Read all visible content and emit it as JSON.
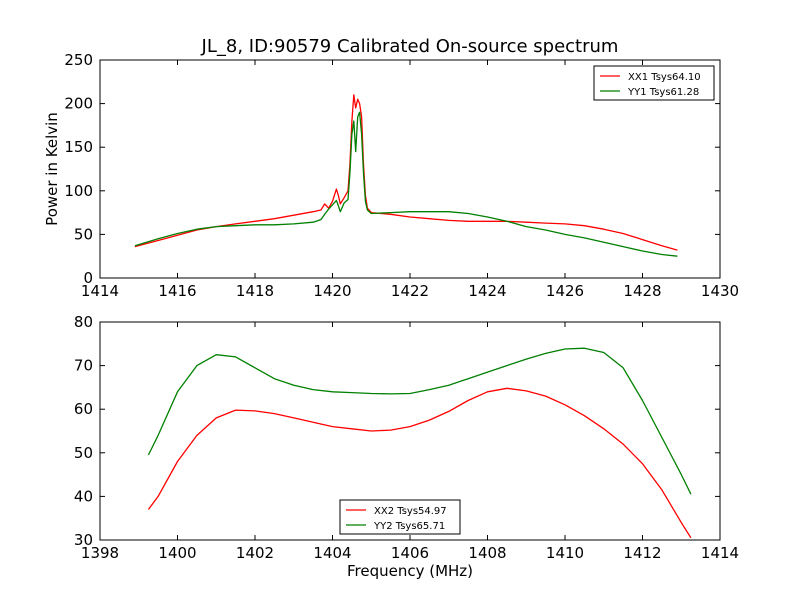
{
  "chart_data": {
    "title": "JL_8, ID:90579 Calibrated On-source spectrum",
    "xlabel": "Frequency (MHz)",
    "charts": [
      {
        "type": "line",
        "ylabel": "Power in Kelvin",
        "xlim": [
          1414,
          1430
        ],
        "ylim": [
          0,
          250
        ],
        "x_ticks": [
          1414,
          1416,
          1418,
          1420,
          1422,
          1424,
          1426,
          1428,
          1430
        ],
        "y_ticks": [
          0,
          50,
          100,
          150,
          200,
          250
        ],
        "legend_position": "top-right",
        "series": [
          {
            "name": "XX1 Tsys64.10",
            "color": "#ff0000",
            "points": [
              [
                1414.9,
                36
              ],
              [
                1415.5,
                43
              ],
              [
                1416.0,
                49
              ],
              [
                1416.5,
                55
              ],
              [
                1417.0,
                59
              ],
              [
                1417.5,
                62
              ],
              [
                1418.0,
                65
              ],
              [
                1418.5,
                68
              ],
              [
                1419.0,
                72
              ],
              [
                1419.5,
                76
              ],
              [
                1419.7,
                78
              ],
              [
                1419.8,
                85
              ],
              [
                1419.9,
                80
              ],
              [
                1420.0,
                88
              ],
              [
                1420.1,
                102
              ],
              [
                1420.15,
                95
              ],
              [
                1420.2,
                85
              ],
              [
                1420.3,
                92
              ],
              [
                1420.4,
                100
              ],
              [
                1420.45,
                130
              ],
              [
                1420.5,
                180
              ],
              [
                1420.55,
                210
              ],
              [
                1420.6,
                195
              ],
              [
                1420.65,
                205
              ],
              [
                1420.7,
                200
              ],
              [
                1420.75,
                185
              ],
              [
                1420.8,
                130
              ],
              [
                1420.85,
                95
              ],
              [
                1420.9,
                80
              ],
              [
                1421.0,
                75
              ],
              [
                1421.5,
                73
              ],
              [
                1422.0,
                70
              ],
              [
                1422.5,
                68
              ],
              [
                1423.0,
                66
              ],
              [
                1423.5,
                65
              ],
              [
                1424.0,
                65
              ],
              [
                1424.5,
                65
              ],
              [
                1425.0,
                64
              ],
              [
                1425.5,
                63
              ],
              [
                1426.0,
                62
              ],
              [
                1426.5,
                60
              ],
              [
                1427.0,
                56
              ],
              [
                1427.5,
                51
              ],
              [
                1428.0,
                44
              ],
              [
                1428.5,
                37
              ],
              [
                1428.9,
                32
              ]
            ]
          },
          {
            "name": "YY1 Tsys61.28",
            "color": "#008000",
            "points": [
              [
                1414.9,
                37
              ],
              [
                1415.5,
                45
              ],
              [
                1416.0,
                51
              ],
              [
                1416.5,
                56
              ],
              [
                1417.0,
                59
              ],
              [
                1417.5,
                60
              ],
              [
                1418.0,
                61
              ],
              [
                1418.5,
                61
              ],
              [
                1419.0,
                62
              ],
              [
                1419.5,
                64
              ],
              [
                1419.7,
                67
              ],
              [
                1419.8,
                73
              ],
              [
                1419.9,
                79
              ],
              [
                1420.0,
                84
              ],
              [
                1420.1,
                89
              ],
              [
                1420.15,
                83
              ],
              [
                1420.2,
                76
              ],
              [
                1420.3,
                86
              ],
              [
                1420.4,
                90
              ],
              [
                1420.45,
                120
              ],
              [
                1420.5,
                165
              ],
              [
                1420.55,
                180
              ],
              [
                1420.6,
                145
              ],
              [
                1420.65,
                185
              ],
              [
                1420.7,
                190
              ],
              [
                1420.75,
                165
              ],
              [
                1420.8,
                120
              ],
              [
                1420.85,
                88
              ],
              [
                1420.9,
                78
              ],
              [
                1421.0,
                74
              ],
              [
                1421.5,
                75
              ],
              [
                1422.0,
                76
              ],
              [
                1422.5,
                76
              ],
              [
                1423.0,
                76
              ],
              [
                1423.5,
                74
              ],
              [
                1424.0,
                70
              ],
              [
                1424.5,
                65
              ],
              [
                1425.0,
                59
              ],
              [
                1425.5,
                55
              ],
              [
                1426.0,
                50
              ],
              [
                1426.5,
                46
              ],
              [
                1427.0,
                41
              ],
              [
                1427.5,
                36
              ],
              [
                1428.0,
                31
              ],
              [
                1428.5,
                27
              ],
              [
                1428.9,
                25
              ]
            ]
          }
        ]
      },
      {
        "type": "line",
        "ylabel": "",
        "xlim": [
          1398,
          1414
        ],
        "ylim": [
          30,
          80
        ],
        "x_ticks": [
          1398,
          1400,
          1402,
          1404,
          1406,
          1408,
          1410,
          1412,
          1414
        ],
        "y_ticks": [
          30,
          40,
          50,
          60,
          70,
          80
        ],
        "legend_position": "bottom-center",
        "series": [
          {
            "name": "XX2 Tsys54.97",
            "color": "#ff0000",
            "points": [
              [
                1399.25,
                37
              ],
              [
                1399.5,
                40
              ],
              [
                1400.0,
                48
              ],
              [
                1400.5,
                54
              ],
              [
                1401.0,
                58
              ],
              [
                1401.5,
                59.8
              ],
              [
                1402.0,
                59.6
              ],
              [
                1402.5,
                59
              ],
              [
                1403.0,
                58
              ],
              [
                1403.5,
                57
              ],
              [
                1404.0,
                56
              ],
              [
                1404.5,
                55.5
              ],
              [
                1405.0,
                55
              ],
              [
                1405.5,
                55.2
              ],
              [
                1406.0,
                56
              ],
              [
                1406.5,
                57.5
              ],
              [
                1407.0,
                59.5
              ],
              [
                1407.5,
                62
              ],
              [
                1408.0,
                64
              ],
              [
                1408.5,
                64.8
              ],
              [
                1409.0,
                64.2
              ],
              [
                1409.5,
                63
              ],
              [
                1410.0,
                61
              ],
              [
                1410.5,
                58.5
              ],
              [
                1411.0,
                55.5
              ],
              [
                1411.5,
                52
              ],
              [
                1412.0,
                47.5
              ],
              [
                1412.5,
                41.5
              ],
              [
                1413.0,
                34
              ],
              [
                1413.25,
                30.5
              ]
            ]
          },
          {
            "name": "YY2 Tsys65.71",
            "color": "#008000",
            "points": [
              [
                1399.25,
                49.5
              ],
              [
                1399.5,
                54
              ],
              [
                1400.0,
                64
              ],
              [
                1400.5,
                70
              ],
              [
                1401.0,
                72.5
              ],
              [
                1401.5,
                72
              ],
              [
                1402.0,
                69.5
              ],
              [
                1402.5,
                67
              ],
              [
                1403.0,
                65.5
              ],
              [
                1403.5,
                64.5
              ],
              [
                1404.0,
                64
              ],
              [
                1404.5,
                63.8
              ],
              [
                1405.0,
                63.6
              ],
              [
                1405.5,
                63.5
              ],
              [
                1406.0,
                63.6
              ],
              [
                1406.5,
                64.5
              ],
              [
                1407.0,
                65.5
              ],
              [
                1407.5,
                67
              ],
              [
                1408.0,
                68.5
              ],
              [
                1408.5,
                70
              ],
              [
                1409.0,
                71.5
              ],
              [
                1409.5,
                72.8
              ],
              [
                1410.0,
                73.8
              ],
              [
                1410.5,
                74
              ],
              [
                1411.0,
                73
              ],
              [
                1411.5,
                69.5
              ],
              [
                1412.0,
                62
              ],
              [
                1412.5,
                53.5
              ],
              [
                1413.0,
                45
              ],
              [
                1413.25,
                40.5
              ]
            ]
          }
        ]
      }
    ]
  }
}
